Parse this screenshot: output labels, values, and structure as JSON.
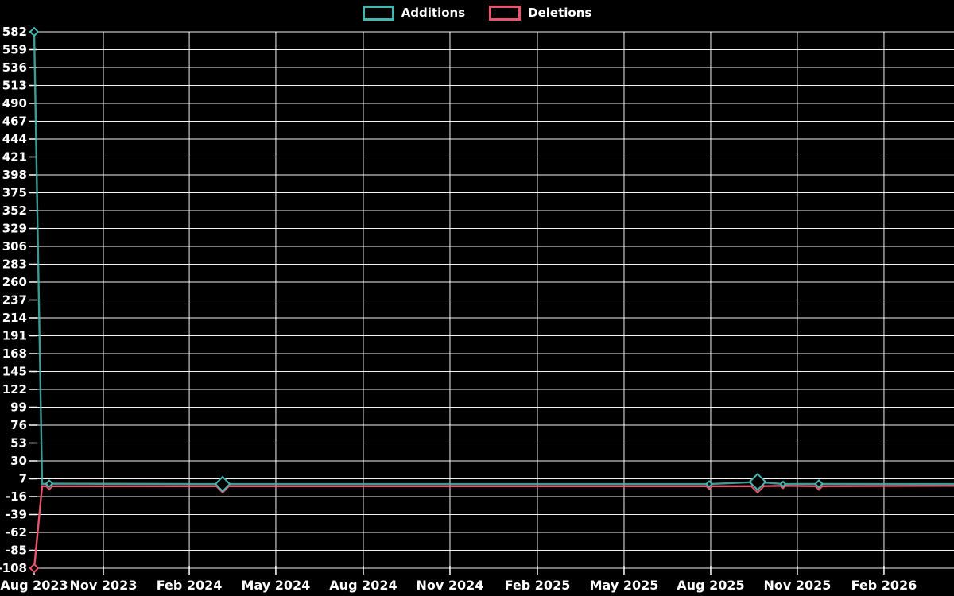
{
  "page": {
    "background": "#000000",
    "text_color": "#ffffff"
  },
  "chart_data": {
    "type": "line",
    "title": "",
    "subtitle": "",
    "grid": true,
    "legend_position": "top-center",
    "background": "#000000",
    "gridline_color": "#ffffff",
    "tick_text_color": "#ffffff",
    "ylim": [
      -108,
      582
    ],
    "y_tick_step": 23,
    "y_ticks": [
      582,
      559,
      536,
      513,
      490,
      467,
      444,
      421,
      398,
      375,
      352,
      329,
      306,
      283,
      260,
      237,
      214,
      191,
      168,
      145,
      122,
      99,
      76,
      53,
      30,
      7,
      -16,
      -39,
      -62,
      -85,
      -108
    ],
    "x_ticks": [
      {
        "label": "Aug 2023",
        "x": 0.0
      },
      {
        "label": "Nov 2023",
        "x": 0.0752
      },
      {
        "label": "Feb 2024",
        "x": 0.1686
      },
      {
        "label": "May 2024",
        "x": 0.2627
      },
      {
        "label": "Aug 2024",
        "x": 0.3578
      },
      {
        "label": "Nov 2024",
        "x": 0.452
      },
      {
        "label": "Feb 2025",
        "x": 0.5471
      },
      {
        "label": "May 2025",
        "x": 0.6413
      },
      {
        "label": "Aug 2025",
        "x": 0.7355
      },
      {
        "label": "Nov 2025",
        "x": 0.8297
      },
      {
        "label": "Feb 2026",
        "x": 0.9239
      }
    ],
    "series": [
      {
        "name": "Additions",
        "color": "#45b7b0",
        "points": [
          {
            "date": "Aug 2023",
            "x": 0.0,
            "v": 582,
            "marker": 5
          },
          {
            "date": "Sep 2023",
            "x": 0.0086,
            "v": 0.4,
            "marker": 0
          },
          {
            "date": "Sep 2023",
            "x": 0.0164,
            "v": 0.8,
            "marker": 4
          },
          {
            "date": "Mar 2024",
            "x": 0.2049,
            "v": 0.3,
            "marker": 9
          },
          {
            "date": "Jul 2025",
            "x": 0.7338,
            "v": 0.3,
            "marker": 3.5
          },
          {
            "date": "Sep 2025",
            "x": 0.7865,
            "v": 3,
            "marker": 10
          },
          {
            "date": "Oct 2025",
            "x": 0.8142,
            "v": 0.3,
            "marker": 3
          },
          {
            "date": "Nov 2025",
            "x": 0.8531,
            "v": 0.5,
            "marker": 4.5
          },
          {
            "date": "Feb 2026",
            "x": 1.0,
            "v": 0.3,
            "marker": 0
          }
        ]
      },
      {
        "name": "Deletions",
        "color": "#e8566e",
        "points": [
          {
            "date": "Aug 2023",
            "x": 0.0,
            "v": -108,
            "marker": 5
          },
          {
            "date": "Sep 2023",
            "x": 0.0086,
            "v": -2.5,
            "marker": 0
          },
          {
            "date": "Sep 2023",
            "x": 0.0164,
            "v": -2.5,
            "marker": 4
          },
          {
            "date": "Mar 2024",
            "x": 0.2049,
            "v": -2.5,
            "marker": 8
          },
          {
            "date": "Jul 2025",
            "x": 0.7338,
            "v": -2.5,
            "marker": 3.5
          },
          {
            "date": "Sep 2025",
            "x": 0.7865,
            "v": -2.5,
            "marker": 8
          },
          {
            "date": "Oct 2025",
            "x": 0.8142,
            "v": -2,
            "marker": 3
          },
          {
            "date": "Nov 2025",
            "x": 0.8531,
            "v": -2.5,
            "marker": 4.5
          },
          {
            "date": "Feb 2026",
            "x": 1.0,
            "v": -2,
            "marker": 0
          }
        ]
      }
    ]
  }
}
